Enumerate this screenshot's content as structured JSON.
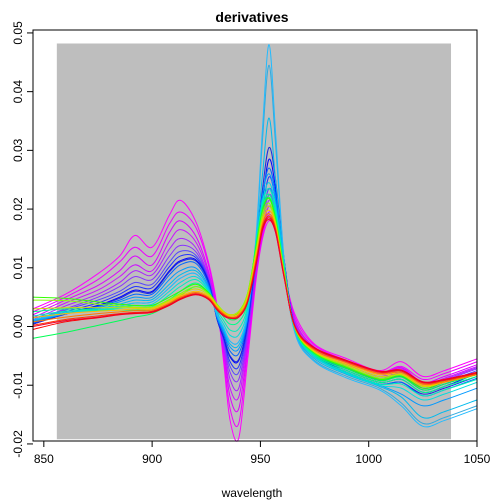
{
  "chart_data": {
    "type": "line",
    "title": "derivatives",
    "xlabel": "wavelength",
    "ylabel": "",
    "xlim": [
      845,
      1050
    ],
    "ylim": [
      -0.0195,
      0.0505
    ],
    "x_ticks": [
      850,
      900,
      950,
      1000,
      1050
    ],
    "x_tick_labels": [
      "850",
      "900",
      "950",
      "1000",
      "1050"
    ],
    "y_ticks": [
      -0.02,
      -0.01,
      0.0,
      0.01,
      0.02,
      0.03,
      0.04,
      0.05
    ],
    "y_tick_labels": [
      "-0.02",
      "-0.01",
      "0.00",
      "0.01",
      "0.02",
      "0.03",
      "0.04",
      "0.05"
    ],
    "shaded_region": {
      "x": [
        856,
        1038
      ],
      "y": [
        -0.0192,
        0.0482
      ],
      "color": "#bebebe"
    },
    "background_color": "#ffffff",
    "x": [
      845,
      860,
      875,
      885,
      892,
      900,
      908,
      913,
      920,
      926,
      930,
      933,
      936,
      940,
      944,
      948,
      951,
      954,
      957,
      961,
      966,
      975,
      990,
      1005,
      1015,
      1025,
      1035,
      1050
    ],
    "series": [
      {
        "color": "#ff00ff",
        "values": [
          0.003,
          0.0055,
          0.009,
          0.012,
          0.0155,
          0.0135,
          0.019,
          0.0215,
          0.018,
          0.011,
          0.0035,
          -0.006,
          -0.016,
          -0.019,
          -0.006,
          0.008,
          0.015,
          0.018,
          0.016,
          0.009,
          0.002,
          -0.003,
          -0.0055,
          -0.0075,
          -0.006,
          -0.0085,
          -0.0075,
          -0.0055
        ]
      },
      {
        "color": "#ee00ff",
        "values": [
          0.0025,
          0.005,
          0.008,
          0.011,
          0.0135,
          0.012,
          0.0175,
          0.0195,
          0.017,
          0.0105,
          0.003,
          -0.005,
          -0.014,
          -0.0165,
          -0.0045,
          0.0085,
          0.0155,
          0.019,
          0.017,
          0.0095,
          0.0015,
          -0.0032,
          -0.0058,
          -0.0078,
          -0.0068,
          -0.009,
          -0.008,
          -0.006
        ]
      },
      {
        "color": "#dd00ff",
        "values": [
          0.002,
          0.0045,
          0.007,
          0.0095,
          0.012,
          0.0105,
          0.016,
          0.018,
          0.0155,
          0.0095,
          0.0025,
          -0.004,
          -0.012,
          -0.014,
          -0.0035,
          0.009,
          0.016,
          0.0195,
          0.0175,
          0.0095,
          0.001,
          -0.0035,
          -0.006,
          -0.008,
          -0.007,
          -0.0095,
          -0.0085,
          -0.0065
        ]
      },
      {
        "color": "#cc11ff",
        "values": [
          0.0015,
          0.004,
          0.0062,
          0.0085,
          0.0105,
          0.0095,
          0.0145,
          0.0165,
          0.0145,
          0.009,
          0.002,
          -0.0035,
          -0.0105,
          -0.012,
          -0.0025,
          0.0095,
          0.0165,
          0.0205,
          0.018,
          0.0098,
          0.0008,
          -0.0037,
          -0.0062,
          -0.0082,
          -0.0072,
          -0.0098,
          -0.0088,
          -0.0068
        ]
      },
      {
        "color": "#aa22ff",
        "values": [
          0.0012,
          0.0035,
          0.0055,
          0.0075,
          0.0095,
          0.0088,
          0.0132,
          0.015,
          0.0135,
          0.0085,
          0.0018,
          -0.003,
          -0.009,
          -0.0105,
          -0.0018,
          0.01,
          0.0172,
          0.0215,
          0.0188,
          0.01,
          0.0005,
          -0.004,
          -0.0065,
          -0.0085,
          -0.0075,
          -0.01,
          -0.009,
          -0.007
        ]
      },
      {
        "color": "#8833ff",
        "values": [
          0.001,
          0.003,
          0.005,
          0.0068,
          0.0085,
          0.008,
          0.012,
          0.0138,
          0.0128,
          0.0082,
          0.0015,
          -0.0025,
          -0.0078,
          -0.009,
          -0.0012,
          0.0105,
          0.018,
          0.0225,
          0.0195,
          0.0102,
          0.0003,
          -0.0042,
          -0.0068,
          -0.0088,
          -0.0078,
          -0.0102,
          -0.0092,
          -0.0072
        ]
      },
      {
        "color": "#5544ff",
        "values": [
          0.0008,
          0.0028,
          0.0045,
          0.006,
          0.0075,
          0.0072,
          0.011,
          0.0128,
          0.0122,
          0.008,
          0.0014,
          -0.0022,
          -0.0068,
          -0.0078,
          -0.0006,
          0.011,
          0.0188,
          0.0235,
          0.0205,
          0.0105,
          0.0,
          -0.0045,
          -0.007,
          -0.009,
          -0.008,
          -0.0105,
          -0.0095,
          -0.0075
        ]
      },
      {
        "color": "#2233ff",
        "values": [
          0.0005,
          0.0025,
          0.004,
          0.0055,
          0.0068,
          0.0066,
          0.0102,
          0.012,
          0.0118,
          0.0078,
          0.0012,
          -0.002,
          -0.006,
          -0.0068,
          0.0,
          0.0118,
          0.02,
          0.0255,
          0.0215,
          0.0108,
          -0.0002,
          -0.0048,
          -0.0072,
          -0.0092,
          -0.0085,
          -0.0108,
          -0.0098,
          -0.0078
        ]
      },
      {
        "color": "#0000ff",
        "values": [
          0.0004,
          0.0022,
          0.0036,
          0.005,
          0.0062,
          0.006,
          0.0095,
          0.0112,
          0.0114,
          0.0076,
          0.0012,
          -0.0018,
          -0.0052,
          -0.0058,
          0.0005,
          0.0125,
          0.0215,
          0.0285,
          0.0235,
          0.0112,
          -0.0004,
          -0.005,
          -0.0075,
          -0.0095,
          -0.009,
          -0.0112,
          -0.0102,
          -0.008
        ]
      },
      {
        "color": "#1a2bdd",
        "values": [
          0.0004,
          0.0021,
          0.0035,
          0.0048,
          0.006,
          0.0058,
          0.0093,
          0.011,
          0.0112,
          0.0075,
          0.0012,
          -0.0017,
          -0.005,
          -0.0056,
          0.0006,
          0.0135,
          0.0235,
          0.0305,
          0.025,
          0.0112,
          -0.0004,
          -0.0052,
          -0.0078,
          -0.0098,
          -0.0095,
          -0.0115,
          -0.0105,
          -0.0085
        ]
      },
      {
        "color": "#0066ff",
        "values": [
          0.0006,
          0.0022,
          0.0034,
          0.0045,
          0.0055,
          0.0055,
          0.0088,
          0.0105,
          0.0108,
          0.0072,
          0.0014,
          -0.0012,
          -0.0042,
          -0.0046,
          0.001,
          0.013,
          0.0225,
          0.027,
          0.0225,
          0.0108,
          -0.0005,
          -0.005,
          -0.0078,
          -0.0098,
          -0.0095,
          -0.0118,
          -0.0108,
          -0.0088
        ]
      },
      {
        "color": "#0099ff",
        "values": [
          0.0008,
          0.0022,
          0.0032,
          0.0042,
          0.005,
          0.005,
          0.008,
          0.0095,
          0.01,
          0.0068,
          0.0016,
          -0.0008,
          -0.0035,
          -0.0038,
          0.0014,
          0.0135,
          0.0225,
          0.026,
          0.0215,
          0.0105,
          -0.0006,
          -0.0052,
          -0.008,
          -0.01,
          -0.0115,
          -0.0135,
          -0.0125,
          -0.0105
        ]
      },
      {
        "color": "#00bbee",
        "values": [
          0.001,
          0.0022,
          0.003,
          0.0038,
          0.0045,
          0.0046,
          0.0072,
          0.0088,
          0.0095,
          0.0065,
          0.0018,
          -0.0005,
          -0.003,
          -0.0032,
          0.0018,
          0.0145,
          0.026,
          0.0355,
          0.025,
          0.0105,
          -0.0008,
          -0.0055,
          -0.0082,
          -0.0102,
          -0.012,
          -0.0155,
          -0.0145,
          -0.0125
        ]
      },
      {
        "color": "#33aadd",
        "values": [
          0.0012,
          0.0022,
          0.0028,
          0.0035,
          0.004,
          0.0042,
          0.0066,
          0.0082,
          0.009,
          0.0062,
          0.002,
          -0.0002,
          -0.0025,
          -0.0026,
          0.0022,
          0.015,
          0.032,
          0.0445,
          0.031,
          0.011,
          -0.001,
          -0.0058,
          -0.0085,
          -0.0105,
          -0.013,
          -0.0165,
          -0.0155,
          -0.0135
        ]
      },
      {
        "color": "#22bbff",
        "values": [
          0.0012,
          0.0022,
          0.0028,
          0.0035,
          0.004,
          0.0042,
          0.0066,
          0.0082,
          0.009,
          0.0062,
          0.002,
          -0.0002,
          -0.0025,
          -0.0026,
          0.0022,
          0.0155,
          0.034,
          0.048,
          0.033,
          0.0112,
          -0.0012,
          -0.006,
          -0.0088,
          -0.0108,
          -0.0135,
          -0.017,
          -0.016,
          -0.014
        ]
      },
      {
        "color": "#00dddd",
        "values": [
          0.0015,
          0.0024,
          0.0028,
          0.0033,
          0.0036,
          0.0038,
          0.006,
          0.0075,
          0.0085,
          0.0062,
          0.0024,
          0.0004,
          -0.0015,
          -0.0014,
          0.0028,
          0.0145,
          0.0215,
          0.0245,
          0.0205,
          0.0102,
          -0.0006,
          -0.0052,
          -0.008,
          -0.01,
          -0.0105,
          -0.0125,
          -0.0115,
          -0.0095
        ]
      },
      {
        "color": "#00eebb",
        "values": [
          0.0018,
          0.0026,
          0.0028,
          0.0031,
          0.0033,
          0.0034,
          0.0054,
          0.0068,
          0.008,
          0.006,
          0.0028,
          0.001,
          -0.0006,
          -0.0004,
          0.0034,
          0.0142,
          0.021,
          0.0235,
          0.0198,
          0.01,
          -0.0006,
          -0.005,
          -0.0078,
          -0.0098,
          -0.0098,
          -0.0118,
          -0.0108,
          -0.009
        ]
      },
      {
        "color": "#00ff88",
        "values": [
          0.0025,
          0.003,
          0.0028,
          0.0028,
          0.0028,
          0.003,
          0.0046,
          0.006,
          0.0074,
          0.0058,
          0.0032,
          0.0016,
          0.0004,
          0.0008,
          0.004,
          0.014,
          0.0205,
          0.0225,
          0.019,
          0.0098,
          -0.0005,
          -0.0048,
          -0.0075,
          -0.0095,
          -0.009,
          -0.0112,
          -0.0102,
          -0.0085
        ]
      },
      {
        "color": "#00ff55",
        "values": [
          -0.002,
          -0.001,
          0.0002,
          0.001,
          0.0016,
          0.0022,
          0.0038,
          0.0052,
          0.0068,
          0.0056,
          0.0036,
          0.0022,
          0.0012,
          0.0016,
          0.0048,
          0.0138,
          0.02,
          0.022,
          0.0185,
          0.0096,
          -0.0004,
          -0.0046,
          -0.0072,
          -0.0092,
          -0.0086,
          -0.0108,
          -0.0098,
          -0.0082
        ]
      },
      {
        "color": "#33ff00",
        "values": [
          0.005,
          0.0048,
          0.0042,
          0.0038,
          0.0036,
          0.0036,
          0.005,
          0.006,
          0.0072,
          0.0058,
          0.0038,
          0.0025,
          0.0018,
          0.0024,
          0.0055,
          0.0135,
          0.0198,
          0.0218,
          0.0182,
          0.0094,
          -0.0004,
          -0.0045,
          -0.007,
          -0.009,
          -0.0084,
          -0.0105,
          -0.0095,
          -0.008
        ]
      },
      {
        "color": "#88ff00",
        "values": [
          0.0045,
          0.0044,
          0.0038,
          0.0035,
          0.0033,
          0.0033,
          0.0046,
          0.0056,
          0.0068,
          0.0056,
          0.0038,
          0.0026,
          0.002,
          0.0026,
          0.0056,
          0.013,
          0.0192,
          0.021,
          0.0178,
          0.0092,
          -0.0003,
          -0.0044,
          -0.0068,
          -0.0088,
          -0.0082,
          -0.0102,
          -0.0092,
          -0.0078
        ]
      },
      {
        "color": "#ccdd00",
        "values": [
          0.003,
          0.0032,
          0.0032,
          0.0032,
          0.0032,
          0.0032,
          0.0044,
          0.0054,
          0.0064,
          0.0054,
          0.0036,
          0.0025,
          0.002,
          0.0025,
          0.0052,
          0.0125,
          0.0185,
          0.0205,
          0.0175,
          0.009,
          -0.0003,
          -0.0043,
          -0.0066,
          -0.0085,
          -0.0082,
          -0.0102,
          -0.0095,
          -0.008
        ]
      },
      {
        "color": "#ffbb00",
        "values": [
          0.0015,
          0.0022,
          0.0026,
          0.0028,
          0.003,
          0.003,
          0.0042,
          0.0052,
          0.006,
          0.0052,
          0.0034,
          0.0024,
          0.0018,
          0.0022,
          0.0048,
          0.012,
          0.018,
          0.0198,
          0.0172,
          0.0088,
          -0.0002,
          -0.0042,
          -0.0064,
          -0.0082,
          -0.008,
          -0.01,
          -0.0095,
          -0.0082
        ]
      },
      {
        "color": "#ff7700",
        "values": [
          0.0008,
          0.0016,
          0.0022,
          0.0025,
          0.0027,
          0.0028,
          0.004,
          0.005,
          0.0058,
          0.005,
          0.0032,
          0.0022,
          0.0016,
          0.002,
          0.0045,
          0.0115,
          0.0175,
          0.0192,
          0.0168,
          0.0086,
          -0.0002,
          -0.004,
          -0.0062,
          -0.008,
          -0.0078,
          -0.0098,
          -0.0094,
          -0.0082
        ]
      },
      {
        "color": "#ff3300",
        "values": [
          0.0002,
          0.0012,
          0.0018,
          0.0022,
          0.0024,
          0.0026,
          0.0038,
          0.0048,
          0.0056,
          0.0048,
          0.003,
          0.002,
          0.0015,
          0.0018,
          0.0042,
          0.011,
          0.017,
          0.0188,
          0.0165,
          0.0085,
          -0.0001,
          -0.0038,
          -0.006,
          -0.0078,
          -0.0076,
          -0.0096,
          -0.0092,
          -0.008
        ]
      },
      {
        "color": "#ff0000",
        "values": [
          -0.0005,
          0.0008,
          0.0015,
          0.002,
          0.0022,
          0.0024,
          0.0036,
          0.0046,
          0.0054,
          0.0046,
          0.0028,
          0.0018,
          0.0014,
          0.0016,
          0.004,
          0.0105,
          0.0165,
          0.0182,
          0.016,
          0.0082,
          0.0,
          -0.0036,
          -0.0058,
          -0.0076,
          -0.0074,
          -0.0094,
          -0.009,
          -0.0078
        ]
      },
      {
        "color": "#ee0033",
        "values": [
          0.0,
          0.001,
          0.0016,
          0.0021,
          0.0023,
          0.0025,
          0.0037,
          0.0047,
          0.0055,
          0.0047,
          0.0029,
          0.0019,
          0.0014,
          0.0017,
          0.0041,
          0.0108,
          0.0168,
          0.0185,
          0.0162,
          0.0083,
          0.0,
          -0.0037,
          -0.0059,
          -0.0077,
          -0.0075,
          -0.0095,
          -0.0091,
          -0.0079
        ]
      }
    ]
  }
}
